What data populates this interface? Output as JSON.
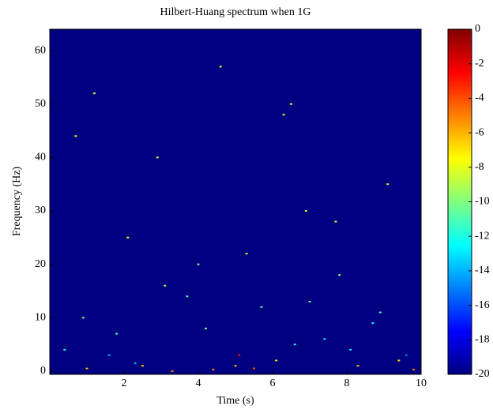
{
  "chart_data": {
    "type": "heatmap",
    "title": "Hilbert-Huang spectrum when 1G",
    "x_label": "Time (s)",
    "y_label": "Frequency (Hz)",
    "xlim": [
      0,
      10
    ],
    "xticks": [
      2,
      4,
      6,
      8,
      10
    ],
    "ylim": [
      -0.6,
      64
    ],
    "yticks": [
      0,
      10,
      20,
      30,
      40,
      50,
      60
    ],
    "colormap": "jet",
    "clim": [
      -20,
      0
    ],
    "cticks": [
      0,
      -2,
      -4,
      -6,
      -8,
      -10,
      -12,
      -14,
      -16,
      -18,
      -20
    ],
    "x": [
      0.4,
      0.9,
      1.2,
      1.6,
      2.1,
      2.5,
      2.9,
      3.3,
      3.7,
      4.2,
      4.6,
      5.0,
      5.3,
      5.7,
      6.1,
      6.5,
      6.9,
      7.4,
      7.8,
      8.3,
      8.7,
      9.1,
      9.6,
      0.7,
      1.8,
      3.1,
      4.4,
      5.5,
      6.6,
      7.7,
      8.9,
      9.4,
      2.3,
      4.0,
      6.3,
      8.1,
      1.0,
      5.1,
      7.0,
      9.8
    ],
    "y": [
      4,
      10,
      52,
      3,
      25,
      1,
      40,
      0,
      14,
      8,
      57,
      1,
      22,
      12,
      2,
      50,
      30,
      6,
      18,
      1,
      9,
      35,
      3,
      44,
      7,
      16,
      0.3,
      0.5,
      5,
      28,
      11,
      2,
      1.5,
      20,
      48,
      4,
      0.5,
      3,
      13,
      0.3
    ],
    "values": [
      -12,
      -10,
      -9,
      -14,
      -8,
      -6,
      -9,
      -5,
      -11,
      -10,
      -8,
      -6,
      -9,
      -11,
      -7,
      -8,
      -9,
      -13,
      -10,
      -6,
      -12,
      -9,
      -15,
      -8,
      -11,
      -10,
      -5,
      -4,
      -12,
      -9,
      -11,
      -7,
      -14,
      -10,
      -8,
      -13,
      -6,
      -3,
      -11,
      -5
    ]
  }
}
